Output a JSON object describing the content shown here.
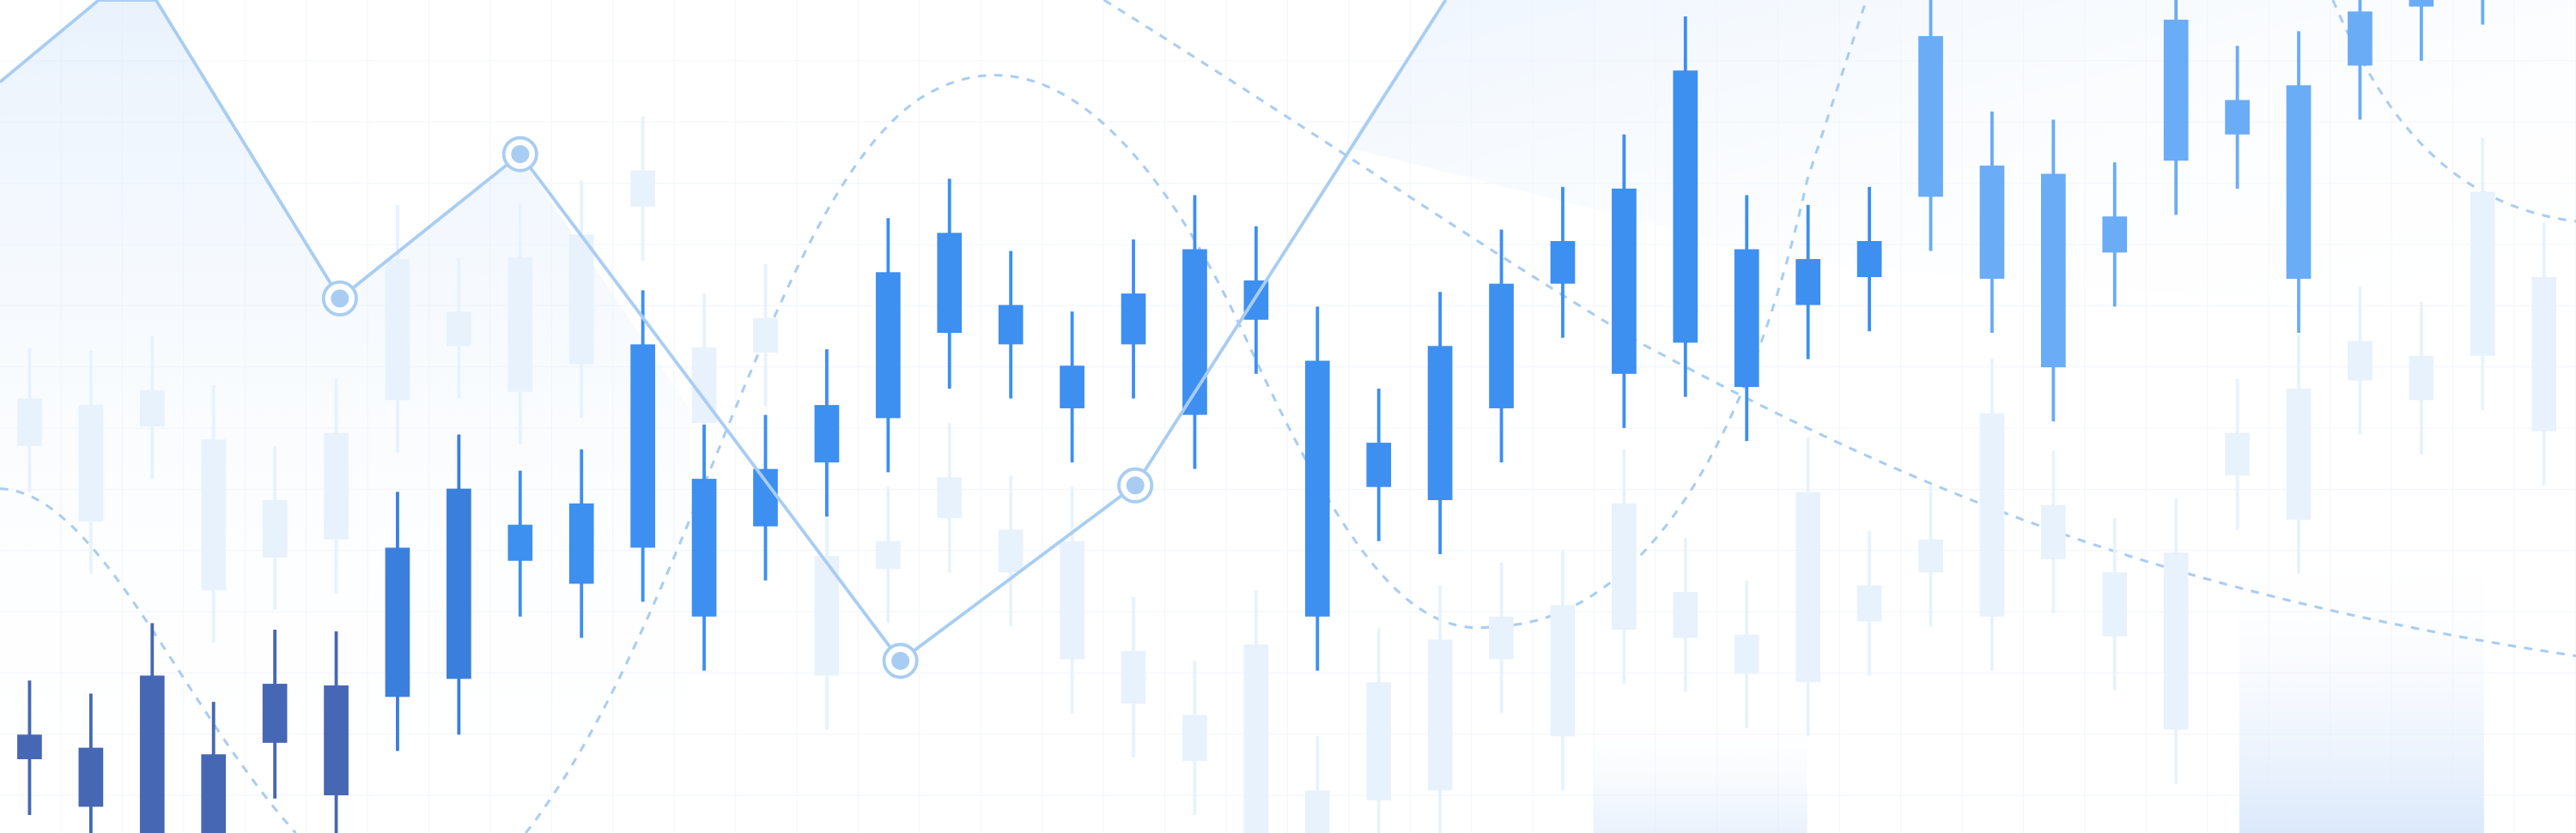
{
  "chart_data": [
    {
      "type": "candlestick",
      "xlim": [
        -0.482,
        41.522
      ],
      "ylim": [
        0,
        508
      ],
      "series": [
        {
          "color": "#e8f2fd",
          "x": [
            0,
            1,
            2,
            3,
            4,
            5,
            6,
            7,
            8,
            9,
            10,
            11,
            12,
            13,
            14,
            15,
            16,
            17,
            18,
            19,
            20,
            21,
            22,
            23,
            24,
            25,
            26,
            27,
            28,
            29,
            30,
            31,
            32,
            33,
            34,
            35,
            36,
            37,
            38,
            39,
            40,
            41
          ],
          "open": [
            236,
            190,
            248,
            148,
            168,
            179,
            264,
            297,
            269,
            286,
            382,
            250,
            293,
            96,
            161,
            192,
            159,
            106,
            79,
            44,
            0,
            0,
            20,
            26,
            106,
            59,
            124,
            119,
            97,
            92,
            129,
            159,
            132,
            167,
            120,
            63,
            218,
            191,
            276,
            264,
            291,
            245
          ],
          "close": [
            265,
            261,
            270,
            240,
            203,
            244,
            350,
            318,
            351,
            365,
            404,
            296,
            314,
            169,
            178,
            217,
            185,
            178,
            111,
            72,
            115,
            26,
            92,
            118,
            132,
            139,
            201,
            147,
            121,
            208,
            151,
            179,
            256,
            200,
            159,
            171,
            244,
            271,
            300,
            291,
            391,
            339
          ],
          "high": [
            296,
            294,
            303,
            273,
            236,
            277,
            383,
            351,
            384,
            398,
            437,
            329,
            347,
            202,
            211,
            250,
            218,
            211,
            144,
            105,
            148,
            59,
            125,
            151,
            165,
            172,
            234,
            180,
            154,
            241,
            184,
            212,
            289,
            233,
            192,
            204,
            277,
            304,
            333,
            324,
            424,
            372
          ],
          "low": [
            208,
            158,
            216,
            116,
            136,
            146,
            232,
            265,
            237,
            253,
            349,
            217,
            260,
            63,
            128,
            159,
            126,
            73,
            46,
            11,
            0,
            0,
            0,
            0,
            73,
            26,
            91,
            86,
            64,
            59,
            96,
            126,
            99,
            134,
            87,
            30,
            185,
            158,
            243,
            231,
            258,
            212
          ]
        },
        {
          "color": "#4667b3",
          "x": [
            0,
            1,
            2,
            3,
            4,
            5
          ],
          "open": [
            45,
            16,
            0,
            0,
            55,
            23
          ],
          "close": [
            60,
            52,
            96,
            48,
            91,
            90
          ],
          "high": [
            93,
            85,
            128,
            80,
            124,
            123
          ],
          "low": [
            11,
            0,
            0,
            0,
            21,
            0
          ]
        },
        {
          "color": "#3b7fdc",
          "x": [
            6,
            7
          ],
          "open": [
            83,
            94
          ],
          "close": [
            174,
            210
          ],
          "high": [
            208,
            243
          ],
          "low": [
            50,
            60
          ]
        },
        {
          "color": "#3d8ff0",
          "x": [
            8,
            9,
            10,
            11,
            12,
            13,
            14,
            15,
            16,
            17,
            18,
            19,
            20,
            21,
            22,
            23,
            24,
            25,
            26,
            27,
            28,
            29,
            30
          ],
          "open": [
            166,
            152,
            174,
            132,
            187,
            226,
            253,
            305,
            298,
            259,
            298,
            255,
            313,
            132,
            211,
            203,
            259,
            335,
            280,
            299,
            272,
            322,
            339
          ],
          "close": [
            188,
            201,
            298,
            216,
            222,
            261,
            342,
            366,
            322,
            285,
            329,
            356,
            337,
            288,
            238,
            297,
            335,
            361,
            393,
            465,
            356,
            350,
            361
          ],
          "high": [
            221,
            234,
            331,
            249,
            255,
            295,
            375,
            399,
            355,
            318,
            362,
            389,
            370,
            321,
            271,
            330,
            368,
            394,
            426,
            498,
            389,
            383,
            394
          ],
          "low": [
            132,
            119,
            141,
            99,
            154,
            193,
            220,
            271,
            265,
            226,
            265,
            222,
            280,
            99,
            178,
            170,
            226,
            302,
            247,
            266,
            239,
            289,
            306
          ]
        },
        {
          "color": "#6aacf5",
          "x": [
            31,
            32,
            33,
            34,
            35,
            36,
            37,
            38,
            39,
            40
          ],
          "open": [
            388,
            338,
            284,
            354,
            410,
            426,
            338,
            468,
            504,
            508
          ],
          "close": [
            486,
            407,
            402,
            376,
            496,
            447,
            456,
            501,
            508,
            508
          ],
          "high": [
            508,
            440,
            435,
            409,
            508,
            480,
            489,
            508,
            508,
            508
          ],
          "low": [
            355,
            305,
            251,
            321,
            377,
            393,
            305,
            435,
            471,
            493
          ]
        }
      ]
    },
    {
      "type": "line",
      "xlim": [
        -0.482,
        41.522
      ],
      "ylim": [
        0,
        508
      ],
      "color": "#a9cdf2",
      "x": [
        -0.482,
        1.13,
        2.06,
        5.06,
        8.0,
        14.2,
        18.03,
        23.09
      ],
      "values": [
        458,
        508,
        508,
        326,
        414,
        105,
        212,
        508
      ]
    }
  ]
}
